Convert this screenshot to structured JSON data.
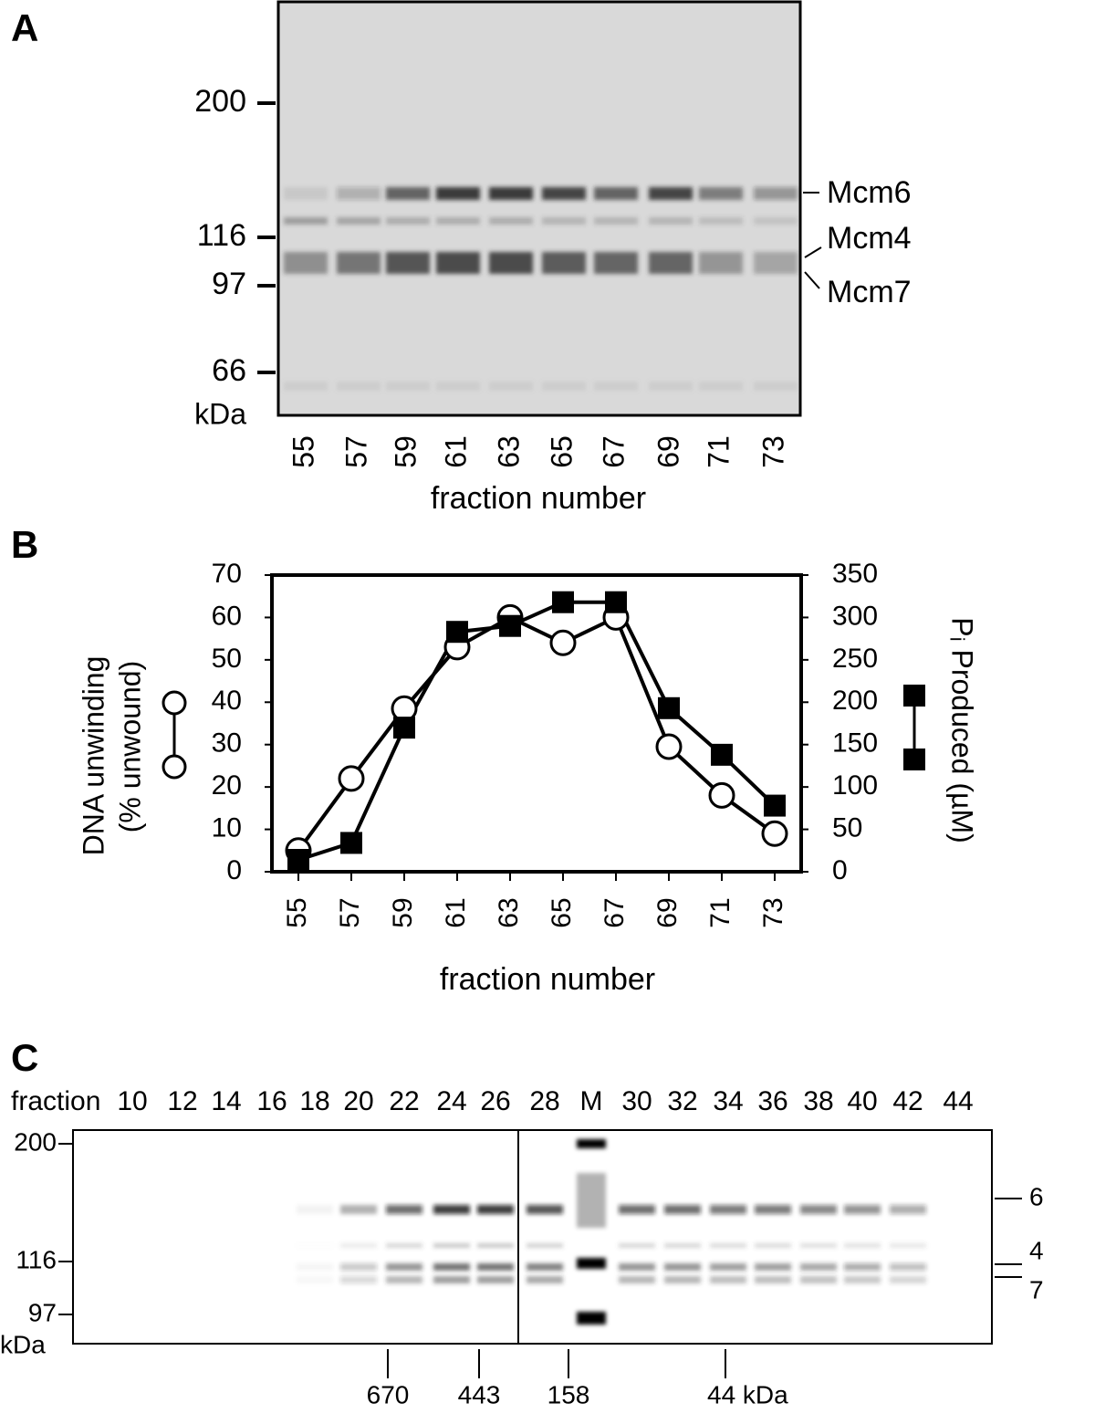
{
  "panel_a": {
    "label": "A",
    "markers": [
      "200",
      "116",
      "97",
      "66"
    ],
    "marker_unit": "kDa",
    "lanes": [
      "55",
      "57",
      "59",
      "61",
      "63",
      "65",
      "67",
      "69",
      "71",
      "73"
    ],
    "x_label": "fraction number",
    "bands": [
      "Mcm6",
      "Mcm4",
      "Mcm7"
    ]
  },
  "chart_data": {
    "type": "line",
    "panel_label": "B",
    "x_label": "fraction number",
    "y_label": [
      "DNA unwinding",
      "(% unwound)"
    ],
    "y2_label": "Pᵢ Produced (µM)",
    "x": [
      55,
      57,
      59,
      61,
      63,
      65,
      67,
      69,
      71,
      73
    ],
    "xlim": [
      54,
      74
    ],
    "xticks": [
      55,
      57,
      59,
      61,
      63,
      65,
      67,
      69,
      71,
      73
    ],
    "ylim": [
      0,
      70
    ],
    "yticks": [
      0,
      10,
      20,
      30,
      40,
      50,
      60,
      70
    ],
    "y2lim": [
      0,
      350
    ],
    "y2ticks": [
      0,
      50,
      100,
      150,
      200,
      250,
      300,
      350
    ],
    "series": [
      {
        "marker": "circle",
        "color": "#000000",
        "values": [
          5,
          22,
          38.5,
          53,
          60,
          54,
          60,
          29.5,
          18,
          9
        ]
      },
      {
        "marker": "square",
        "color": "#000000",
        "axis": "y2",
        "values": [
          14,
          34,
          170,
          283,
          290,
          318,
          318,
          193,
          138,
          78
        ]
      }
    ]
  },
  "panel_c": {
    "label": "C",
    "lane_header": "fraction",
    "lanes": [
      "10",
      "12",
      "14",
      "16",
      "18",
      "20",
      "22",
      "24",
      "26",
      "28",
      "M",
      "30",
      "32",
      "34",
      "36",
      "38",
      "40",
      "42",
      "44"
    ],
    "markers": [
      "200",
      "116",
      "97"
    ],
    "marker_unit": "kDa",
    "subunits": [
      "6",
      "4",
      "7"
    ],
    "size_standards": [
      "670",
      "443",
      "158",
      "44 kDa"
    ]
  }
}
